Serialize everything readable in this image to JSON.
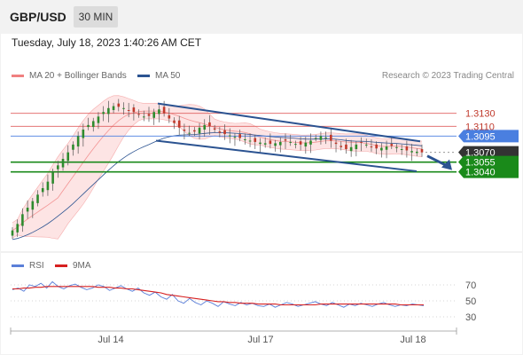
{
  "header": {
    "symbol": "GBP/USD",
    "timeframe": "30 MIN"
  },
  "datetime": "Tuesday, July 18, 2023 1:40:26 AM CET",
  "legend": {
    "bollinger_label": "MA 20 + Bollinger Bands",
    "ma50_label": "MA 50",
    "credit": "Research © 2023 Trading Central"
  },
  "rsi_legend": {
    "rsi_label": "RSI",
    "ma_label": "9MA"
  },
  "colors": {
    "bollinger": "#f08080",
    "bollinger_fill": "#fde4e4",
    "ma50": "#2b5391",
    "resistance": "#e06060",
    "current_level": "#4a7fe0",
    "support": "#1a8a1a",
    "channel": "#2b5391",
    "candle_up": "#2e8b2e",
    "candle_down": "#c0392b",
    "rsi": "#5b7fd8",
    "rsi_ma": "#d62020",
    "price_tag": "#333333"
  },
  "chart_data": [
    {
      "type": "candlestick",
      "title": "GBP/USD",
      "x_tick_labels": [
        "Jul 14",
        "Jul 17",
        "Jul 18"
      ],
      "ylim": [
        1.2925,
        1.3165
      ],
      "levels": [
        {
          "value": 1.313,
          "label": "1.3130",
          "role": "resistance"
        },
        {
          "value": 1.311,
          "label": "1.3110",
          "role": "resistance"
        },
        {
          "value": 1.3095,
          "label": "1.3095",
          "role": "pivot"
        },
        {
          "value": 1.307,
          "label": "1.3070",
          "role": "last_price"
        },
        {
          "value": 1.3055,
          "label": "1.3055",
          "role": "support"
        },
        {
          "value": 1.304,
          "label": "1.3040",
          "role": "support"
        }
      ],
      "close_series": [
        1.295,
        1.296,
        1.2975,
        1.2985,
        1.2995,
        1.3005,
        1.3015,
        1.3025,
        1.304,
        1.305,
        1.306,
        1.307,
        1.3082,
        1.3095,
        1.3105,
        1.3112,
        1.3118,
        1.3125,
        1.3132,
        1.3138,
        1.3141,
        1.314,
        1.3138,
        1.3135,
        1.3132,
        1.3128,
        1.3125,
        1.3126,
        1.3132,
        1.3136,
        1.313,
        1.3122,
        1.3115,
        1.3108,
        1.3103,
        1.31,
        1.3102,
        1.3108,
        1.3112,
        1.311,
        1.3105,
        1.31,
        1.3098,
        1.3096,
        1.3094,
        1.3092,
        1.309,
        1.3088,
        1.3086,
        1.3085,
        1.3084,
        1.3083,
        1.3084,
        1.3086,
        1.3088,
        1.3086,
        1.3083,
        1.3082,
        1.3085,
        1.3088,
        1.3092,
        1.3095,
        1.3093,
        1.3088,
        1.3083,
        1.3078,
        1.3075,
        1.3078,
        1.3082,
        1.3085,
        1.3082,
        1.3078,
        1.3076,
        1.3077,
        1.3079,
        1.308,
        1.3078,
        1.3075,
        1.3073,
        1.3072,
        1.3071,
        1.307
      ],
      "bollinger_middle_label": "MA 20",
      "ma50_label": "MA 50",
      "channel": {
        "upper": {
          "from": 1.3145,
          "to": 1.3087
        },
        "lower": {
          "from": 1.3088,
          "to": 1.3041
        }
      }
    },
    {
      "type": "line",
      "title": "RSI",
      "yticks": [
        30,
        50,
        70
      ],
      "ylim": [
        20,
        80
      ],
      "series": [
        {
          "name": "RSI",
          "values": [
            64,
            66,
            62,
            70,
            68,
            72,
            66,
            74,
            68,
            65,
            69,
            71,
            67,
            64,
            66,
            70,
            68,
            63,
            66,
            69,
            65,
            62,
            66,
            60,
            57,
            61,
            55,
            52,
            58,
            50,
            47,
            53,
            48,
            45,
            50,
            47,
            43,
            49,
            46,
            44,
            48,
            45,
            47,
            44,
            43,
            46,
            42,
            45,
            48,
            46,
            43,
            45,
            47,
            49,
            46,
            44,
            48,
            45,
            42,
            46,
            44,
            47,
            45,
            43,
            46,
            48,
            45,
            43,
            45,
            44,
            46,
            45,
            44
          ]
        },
        {
          "name": "9MA",
          "values": [
            65,
            65,
            66,
            66,
            67,
            67,
            68,
            68,
            68,
            68,
            68,
            68,
            68,
            68,
            68,
            67,
            67,
            67,
            66,
            66,
            65,
            65,
            64,
            63,
            62,
            61,
            60,
            58,
            57,
            56,
            55,
            54,
            53,
            52,
            51,
            50,
            49,
            49,
            48,
            48,
            47,
            47,
            47,
            46,
            46,
            46,
            46,
            45,
            45,
            45,
            45,
            45,
            45,
            45,
            46,
            46,
            46,
            46,
            46,
            46,
            46,
            46,
            46,
            46,
            46,
            46,
            46,
            46,
            45,
            45,
            45,
            45,
            45
          ]
        }
      ]
    }
  ]
}
